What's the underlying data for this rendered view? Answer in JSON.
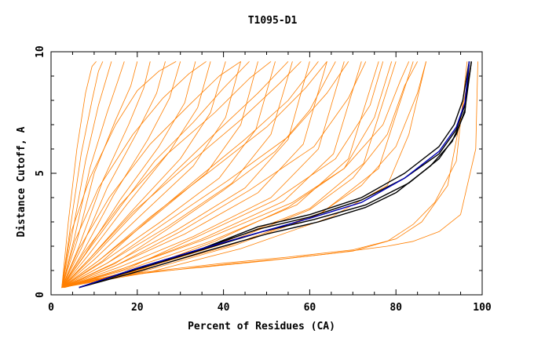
{
  "chart_data": {
    "type": "line",
    "title": "T1095-D1",
    "xlabel": "Percent of Residues (CA)",
    "ylabel": "Distance Cutoff, A",
    "xlim": [
      0,
      100
    ],
    "ylim": [
      0,
      10
    ],
    "x_ticks": [
      0,
      20,
      40,
      60,
      80,
      100
    ],
    "y_ticks": [
      0,
      5,
      10
    ],
    "grid": false,
    "legend": "none",
    "colors": {
      "models": "#ff7f00",
      "highlight_black": "#000000",
      "highlight_blue": "#0000b4"
    },
    "series": [
      {
        "color": "models",
        "x": [
          2.5,
          4,
          6,
          8,
          9.5,
          10.5
        ],
        "y": [
          0.3,
          3.0,
          6.0,
          8.3,
          9.4,
          9.6
        ]
      },
      {
        "color": "models",
        "x": [
          2.5,
          4.5,
          7,
          9.5,
          11,
          12
        ],
        "y": [
          0.3,
          2.8,
          5.8,
          8.0,
          9.2,
          9.6
        ]
      },
      {
        "color": "models",
        "x": [
          2.5,
          5,
          8,
          11,
          13,
          14
        ],
        "y": [
          0.3,
          2.6,
          5.5,
          7.8,
          9.0,
          9.6
        ]
      },
      {
        "color": "models",
        "x": [
          2.5,
          5.5,
          9,
          13,
          15.5,
          17
        ],
        "y": [
          0.3,
          2.4,
          5.2,
          7.5,
          8.8,
          9.6
        ]
      },
      {
        "color": "models",
        "x": [
          2.5,
          6,
          10,
          15,
          18.5,
          20
        ],
        "y": [
          0.3,
          2.2,
          5.0,
          7.2,
          8.6,
          9.6
        ]
      },
      {
        "color": "models",
        "x": [
          2.5,
          6.5,
          12,
          18,
          21.5,
          23
        ],
        "y": [
          0.3,
          2.0,
          4.7,
          7.0,
          8.5,
          9.6
        ]
      },
      {
        "color": "models",
        "x": [
          2.5,
          7,
          13,
          20,
          24.5,
          26.5
        ],
        "y": [
          0.3,
          1.9,
          4.4,
          6.7,
          8.3,
          9.6
        ]
      },
      {
        "color": "models",
        "x": [
          2.5,
          7.5,
          14.5,
          22.5,
          27.5,
          30
        ],
        "y": [
          0.3,
          1.8,
          4.1,
          6.4,
          8.1,
          9.6
        ]
      },
      {
        "color": "models",
        "x": [
          2.5,
          8,
          16,
          25,
          31,
          33.5
        ],
        "y": [
          0.3,
          1.7,
          3.9,
          6.1,
          7.9,
          9.6
        ]
      },
      {
        "color": "models",
        "x": [
          2.5,
          8.5,
          17.5,
          27.5,
          34,
          37
        ],
        "y": [
          0.3,
          1.6,
          3.7,
          5.9,
          7.7,
          9.6
        ]
      },
      {
        "color": "models",
        "x": [
          2.5,
          9,
          19,
          30,
          37,
          40.5
        ],
        "y": [
          0.3,
          1.5,
          3.5,
          5.6,
          7.5,
          9.6
        ]
      },
      {
        "color": "models",
        "x": [
          2.5,
          10,
          21,
          33,
          40.5,
          44
        ],
        "y": [
          0.3,
          1.45,
          3.3,
          5.3,
          7.3,
          9.6
        ]
      },
      {
        "color": "models",
        "x": [
          2.5,
          11,
          23,
          36,
          44,
          48
        ],
        "y": [
          0.3,
          1.4,
          3.1,
          5.0,
          7.0,
          9.6
        ]
      },
      {
        "color": "models",
        "x": [
          2.5,
          12,
          25,
          39,
          47.5,
          52
        ],
        "y": [
          0.3,
          1.35,
          2.95,
          4.8,
          6.8,
          9.6
        ]
      },
      {
        "color": "models",
        "x": [
          2.5,
          13,
          27,
          42,
          51,
          56
        ],
        "y": [
          0.3,
          1.3,
          2.8,
          4.6,
          6.6,
          9.6
        ]
      },
      {
        "color": "models",
        "x": [
          2.5,
          14,
          29,
          45,
          55,
          60
        ],
        "y": [
          0.3,
          1.25,
          2.65,
          4.4,
          6.4,
          9.6
        ]
      },
      {
        "color": "models",
        "x": [
          2.5,
          15,
          31,
          48,
          58.5,
          64
        ],
        "y": [
          0.3,
          1.2,
          2.5,
          4.2,
          6.2,
          9.6
        ]
      },
      {
        "color": "models",
        "x": [
          2.5,
          16,
          33,
          51,
          62,
          68
        ],
        "y": [
          0.3,
          1.15,
          2.4,
          4.0,
          6.0,
          9.6
        ]
      },
      {
        "color": "models",
        "x": [
          2.5,
          17,
          35,
          54,
          65.5,
          72
        ],
        "y": [
          0.3,
          1.1,
          2.3,
          3.85,
          5.8,
          9.6
        ]
      },
      {
        "color": "models",
        "x": [
          2.5,
          18,
          37,
          57,
          69,
          76
        ],
        "y": [
          0.3,
          1.05,
          2.2,
          3.7,
          5.6,
          9.6
        ]
      },
      {
        "color": "models",
        "x": [
          2.5,
          19,
          39,
          60,
          72.5,
          80
        ],
        "y": [
          0.3,
          1.0,
          2.1,
          3.55,
          5.4,
          9.6
        ]
      },
      {
        "color": "models",
        "x": [
          2.5,
          20,
          41,
          63,
          76,
          84
        ],
        "y": [
          0.3,
          0.97,
          2.0,
          3.4,
          5.2,
          9.6
        ]
      },
      {
        "color": "models",
        "x": [
          2.5,
          20,
          38,
          55,
          68,
          75,
          79
        ],
        "y": [
          0.3,
          1.0,
          2.2,
          3.6,
          5.2,
          7.3,
          9.6
        ]
      },
      {
        "color": "models",
        "x": [
          2.5,
          18,
          34,
          52,
          66,
          74,
          77
        ],
        "y": [
          0.3,
          1.1,
          2.4,
          3.9,
          5.6,
          7.8,
          9.6
        ]
      },
      {
        "color": "models",
        "x": [
          2.5,
          15,
          30,
          46,
          61,
          69,
          73
        ],
        "y": [
          0.3,
          1.2,
          2.6,
          4.3,
          6.1,
          8.1,
          9.6
        ]
      },
      {
        "color": "models",
        "x": [
          2.5,
          13,
          26,
          41,
          55,
          64,
          69
        ],
        "y": [
          0.3,
          1.3,
          2.9,
          4.7,
          6.5,
          8.3,
          9.6
        ]
      },
      {
        "color": "models",
        "x": [
          2.5,
          11,
          23,
          37,
          50,
          59,
          64
        ],
        "y": [
          0.3,
          1.4,
          3.2,
          5.1,
          6.9,
          8.5,
          9.6
        ]
      },
      {
        "color": "models",
        "x": [
          2.5,
          9,
          19,
          32,
          44,
          53,
          58
        ],
        "y": [
          0.3,
          1.5,
          3.4,
          5.4,
          7.2,
          8.7,
          9.6
        ]
      },
      {
        "color": "models",
        "x": [
          2.5,
          7.5,
          16,
          27,
          38,
          46,
          51
        ],
        "y": [
          0.3,
          1.7,
          3.7,
          5.8,
          7.5,
          8.9,
          9.6
        ]
      },
      {
        "color": "models",
        "x": [
          2.5,
          6.5,
          13.5,
          23,
          32,
          39,
          44
        ],
        "y": [
          0.3,
          1.9,
          4.0,
          6.2,
          7.8,
          9.0,
          9.6
        ]
      },
      {
        "color": "models",
        "x": [
          2.5,
          5.5,
          11,
          19,
          26,
          32,
          36
        ],
        "y": [
          0.3,
          2.2,
          4.4,
          6.6,
          8.1,
          9.1,
          9.6
        ]
      },
      {
        "color": "models",
        "x": [
          2.5,
          4.5,
          9,
          15,
          20,
          25,
          29
        ],
        "y": [
          0.3,
          2.5,
          4.8,
          7.0,
          8.4,
          9.2,
          9.6
        ]
      },
      {
        "color": "models",
        "x": [
          2.5,
          20,
          40,
          60,
          70,
          78,
          82,
          85
        ],
        "y": [
          0.3,
          1.0,
          2.1,
          3.5,
          4.8,
          6.6,
          8.6,
          9.6
        ]
      },
      {
        "color": "models",
        "x": [
          2.5,
          21,
          42,
          62,
          72,
          80,
          85,
          87
        ],
        "y": [
          0.3,
          0.95,
          2.0,
          3.3,
          4.5,
          6.1,
          8.3,
          9.6
        ]
      },
      {
        "color": "models",
        "x": [
          2.5,
          17,
          36,
          56,
          68,
          77,
          81,
          83
        ],
        "y": [
          0.3,
          1.1,
          2.3,
          3.8,
          5.2,
          7.0,
          8.8,
          9.6
        ]
      },
      {
        "color": "models",
        "x": [
          2.5,
          22,
          44,
          65,
          78,
          83,
          87
        ],
        "y": [
          0.3,
          0.9,
          1.9,
          3.2,
          4.5,
          6.6,
          9.6
        ]
      },
      {
        "color": "models",
        "x": [
          2.5,
          15,
          27,
          40,
          52,
          60,
          66
        ],
        "y": [
          0.3,
          1.3,
          2.7,
          4.3,
          5.9,
          7.6,
          9.6
        ]
      },
      {
        "color": "models",
        "x": [
          2.5,
          12,
          22,
          34,
          45,
          55,
          62
        ],
        "y": [
          0.3,
          1.4,
          3.0,
          4.8,
          6.4,
          8.0,
          9.6
        ]
      },
      {
        "color": "models",
        "x": [
          2.5,
          10,
          19,
          29,
          39,
          48,
          55
        ],
        "y": [
          0.3,
          1.6,
          3.3,
          5.1,
          6.8,
          8.3,
          9.6
        ]
      },
      {
        "color": "models",
        "x": [
          2.5,
          8.5,
          16,
          24,
          33,
          40,
          46
        ],
        "y": [
          0.3,
          1.8,
          3.6,
          5.5,
          7.1,
          8.5,
          9.6
        ]
      },
      {
        "color": "models",
        "x": [
          3,
          10,
          20,
          30,
          40,
          55,
          70,
          80,
          86,
          92,
          97.5
        ],
        "y": [
          0.3,
          0.65,
          0.9,
          1.1,
          1.3,
          1.55,
          1.85,
          2.3,
          3.0,
          4.5,
          9.6
        ]
      },
      {
        "color": "models",
        "x": [
          3,
          10,
          20,
          30,
          40,
          55,
          70,
          78,
          84,
          89,
          94,
          96.5
        ],
        "y": [
          0.3,
          0.6,
          0.85,
          1.05,
          1.25,
          1.5,
          1.8,
          2.2,
          2.9,
          3.8,
          5.5,
          9.6
        ]
      },
      {
        "color": "models",
        "x": [
          3,
          12,
          24,
          36,
          50,
          65,
          78,
          84,
          90,
          95,
          98.5,
          99
        ],
        "y": [
          0.3,
          0.7,
          0.95,
          1.15,
          1.4,
          1.7,
          2.0,
          2.2,
          2.6,
          3.3,
          6.0,
          9.6
        ]
      },
      {
        "color": "highlight_black",
        "x": [
          6.5,
          20,
          35,
          48,
          60,
          72,
          82,
          90,
          94,
          96,
          97.5
        ],
        "y": [
          0.3,
          1.1,
          1.9,
          2.7,
          3.2,
          3.9,
          4.8,
          5.8,
          6.8,
          7.8,
          9.6
        ]
      },
      {
        "color": "highlight_black",
        "x": [
          6.5,
          20,
          35,
          48,
          60,
          72,
          82,
          90,
          93.5,
          95.5,
          97
        ],
        "y": [
          0.3,
          1.1,
          1.9,
          2.8,
          3.3,
          4.0,
          5.0,
          6.1,
          7.0,
          8.0,
          9.6
        ]
      },
      {
        "color": "highlight_black",
        "x": [
          6.5,
          20,
          35,
          49,
          61,
          73,
          83,
          90,
          94,
          96,
          97.5
        ],
        "y": [
          0.3,
          1.05,
          1.85,
          2.6,
          3.1,
          3.7,
          4.6,
          5.6,
          6.6,
          7.6,
          9.6
        ]
      },
      {
        "color": "highlight_black",
        "x": [
          6.5,
          21,
          36,
          50,
          62,
          73,
          80,
          88,
          93,
          96,
          97
        ],
        "y": [
          0.3,
          1.0,
          1.8,
          2.5,
          3.0,
          3.6,
          4.2,
          5.3,
          6.3,
          7.5,
          9.6
        ]
      },
      {
        "color": "highlight_blue",
        "x": [
          6.5,
          20,
          35,
          48,
          60,
          72,
          82,
          90,
          94,
          96,
          97
        ],
        "y": [
          0.3,
          1.1,
          1.9,
          2.55,
          3.15,
          3.8,
          4.8,
          5.9,
          6.9,
          7.9,
          9.6
        ]
      }
    ]
  }
}
